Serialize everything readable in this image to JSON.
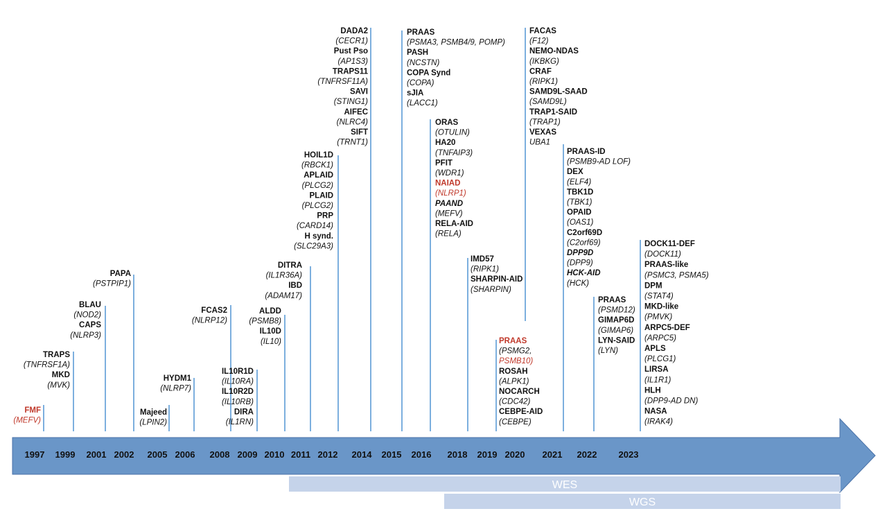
{
  "colors": {
    "black": "#111111",
    "red": "#c0392b",
    "line": "#5b9bd5",
    "arrow": "#6a96c8",
    "arrow_edge": "#4a72a8",
    "band": "#c5d3ea"
  },
  "bands": {
    "wes": "WES",
    "wgs": "WGS"
  },
  "years": [
    "1997",
    "1999",
    "2001",
    "2002",
    "2005",
    "2006",
    "2008",
    "2009",
    "2010",
    "2011",
    "2012",
    "2014",
    "2015",
    "2016",
    "2018",
    "2019",
    "2020",
    "2021",
    "2022",
    "2023"
  ],
  "groups": [
    {
      "name": "1997",
      "entries": [
        {
          "t": "FMF",
          "b": true,
          "c": "red"
        },
        {
          "t": "(MEFV)",
          "i": true,
          "c": "red"
        }
      ]
    },
    {
      "name": "1999",
      "entries": [
        {
          "t": "TRAPS",
          "b": true
        },
        {
          "t": "(TNFRSF1A)",
          "i": true
        },
        {
          "t": "MKD",
          "b": true
        },
        {
          "t": "(MVK)",
          "i": true
        }
      ]
    },
    {
      "name": "2001",
      "entries": [
        {
          "t": "BLAU",
          "b": true
        },
        {
          "t": "(NOD2)",
          "i": true
        },
        {
          "t": "CAPS",
          "b": true
        },
        {
          "t": "(NLRP3)",
          "i": true
        }
      ]
    },
    {
      "name": "2002",
      "entries": [
        {
          "t": "PAPA",
          "b": true
        },
        {
          "t": "(PSTPIP1)",
          "i": true
        }
      ]
    },
    {
      "name": "2005",
      "entries": [
        {
          "t": "Majeed",
          "b": true
        },
        {
          "t": "(LPIN2)",
          "i": true
        }
      ]
    },
    {
      "name": "2006",
      "entries": [
        {
          "t": "HYDM1",
          "b": true
        },
        {
          "t": "(NLRP7)",
          "i": true
        }
      ]
    },
    {
      "name": "2008",
      "entries": [
        {
          "t": "FCAS2",
          "b": true
        },
        {
          "t": "(NLRP12)",
          "i": true
        }
      ]
    },
    {
      "name": "2009",
      "entries": [
        {
          "t": "IL10R1D",
          "b": true
        },
        {
          "t": "(IL10RA)",
          "i": true
        },
        {
          "t": "IL10R2D",
          "b": true
        },
        {
          "t": "(IL10RB)",
          "i": true
        },
        {
          "t": "DIRA",
          "b": true
        },
        {
          "t": "(IL1RN)",
          "i": true
        }
      ]
    },
    {
      "name": "2010",
      "entries": [
        {
          "t": "ALDD",
          "b": true
        },
        {
          "t": "(PSMB8)",
          "i": true
        },
        {
          "t": "IL10D",
          "b": true
        },
        {
          "t": "(IL10)",
          "i": true
        }
      ]
    },
    {
      "name": "2011",
      "entries": [
        {
          "t": "DITRA",
          "b": true
        },
        {
          "t": "(IL1R36A)",
          "i": true
        },
        {
          "t": "IBD",
          "b": true
        },
        {
          "t": "(ADAM17)",
          "i": true
        }
      ]
    },
    {
      "name": "2012",
      "entries": [
        {
          "t": "HOIL1D",
          "b": true
        },
        {
          "t": "(RBCK1)",
          "i": true
        },
        {
          "t": "APLAID",
          "b": true
        },
        {
          "t": "(PLCG2)",
          "i": true
        },
        {
          "t": "PLAID",
          "b": true
        },
        {
          "t": "(PLCG2)",
          "i": true
        },
        {
          "t": "PRP",
          "b": true
        },
        {
          "t": "(CARD14)",
          "i": true
        },
        {
          "t": "H synd.",
          "b": true
        },
        {
          "t": "(SLC29A3)",
          "i": true
        }
      ]
    },
    {
      "name": "2014",
      "entries": [
        {
          "t": "DADA2",
          "b": true
        },
        {
          "t": "(CECR1)",
          "i": true
        },
        {
          "t": "Pust Pso",
          "b": true
        },
        {
          "t": "(AP1S3)",
          "i": true
        },
        {
          "t": "TRAPS11",
          "b": true
        },
        {
          "t": "(TNFRSF11A)",
          "i": true
        },
        {
          "t": "SAVI",
          "b": true
        },
        {
          "t": "(STING1)",
          "i": true
        },
        {
          "t": "AIFEC",
          "b": true
        },
        {
          "t": "(NLRC4)",
          "i": true
        },
        {
          "t": "SIFT",
          "b": true
        },
        {
          "t": "(TRNT1)",
          "i": true
        }
      ]
    },
    {
      "name": "2015",
      "entries": [
        {
          "t": "PRAAS",
          "b": true
        },
        {
          "t": "(PSMA3, PSMB4/9, POMP)",
          "i": true
        },
        {
          "t": "PASH",
          "b": true
        },
        {
          "t": "(NCSTN)",
          "i": true
        },
        {
          "t": "COPA Synd",
          "b": true
        },
        {
          "t": "(COPA)",
          "i": true
        },
        {
          "t": "sJIA",
          "b": true
        },
        {
          "t": "(LACC1)",
          "i": true
        }
      ]
    },
    {
      "name": "2016",
      "entries": [
        {
          "t": "ORAS",
          "b": true
        },
        {
          "t": "(OTULIN)",
          "i": true
        },
        {
          "t": "HA20",
          "b": true
        },
        {
          "t": "(TNFAIP3)",
          "i": true
        },
        {
          "t": "PFIT",
          "b": true
        },
        {
          "t": "(WDR1)",
          "i": true
        },
        {
          "t": "NAIAD",
          "b": true,
          "c": "red"
        },
        {
          "t": "(NLRP1)",
          "i": true,
          "c": "red"
        },
        {
          "t": "PAAND",
          "b": true,
          "i": true
        },
        {
          "t": "(MEFV)",
          "i": true
        },
        {
          "t": "RELA-AID",
          "b": true
        },
        {
          "t": "(RELA)",
          "i": true
        }
      ]
    },
    {
      "name": "2018",
      "entries": [
        {
          "t": "IMD57",
          "b": true
        },
        {
          "t": "(RIPK1)",
          "i": true
        },
        {
          "t": "SHARPIN-AID",
          "b": true
        },
        {
          "t": "(SHARPIN)",
          "i": true
        }
      ]
    },
    {
      "name": "2019",
      "entries": [
        {
          "t": "PRAAS",
          "b": true,
          "c": "red"
        },
        {
          "t": "(PSMG2,",
          "i": true
        },
        {
          "t": "PSMB10)",
          "i": true,
          "c": "red"
        },
        {
          "t": "ROSAH",
          "b": true
        },
        {
          "t": "(ALPK1)",
          "i": true
        },
        {
          "t": "NOCARCH",
          "b": true
        },
        {
          "t": "(CDC42)",
          "i": true
        },
        {
          "t": "CEBPE-AID",
          "b": true
        },
        {
          "t": "(CEBPE)",
          "i": true
        }
      ]
    },
    {
      "name": "2020",
      "entries": [
        {
          "t": "FACAS",
          "b": true
        },
        {
          "t": "(F12)",
          "i": true
        },
        {
          "t": "NEMO-NDAS",
          "b": true
        },
        {
          "t": "(IKBKG)",
          "i": true
        },
        {
          "t": "CRAF",
          "b": true
        },
        {
          "t": "(RIPK1)",
          "i": true
        },
        {
          "t": "SAMD9L-SAAD",
          "b": true
        },
        {
          "t": "(SAMD9L)",
          "i": true
        },
        {
          "t": "TRAP1-SAID",
          "b": true
        },
        {
          "t": "(TRAP1)",
          "i": true
        },
        {
          "t": "VEXAS",
          "b": true
        },
        {
          "t": "UBA1",
          "i": true
        }
      ]
    },
    {
      "name": "2021",
      "entries": [
        {
          "t": "PRAAS-ID",
          "b": true
        },
        {
          "t": "(PSMB9-AD LOF)",
          "i": true
        },
        {
          "t": "DEX",
          "b": true
        },
        {
          "t": "(ELF4)",
          "i": true
        },
        {
          "t": "TBK1D",
          "b": true
        },
        {
          "t": "(TBK1)",
          "i": true
        },
        {
          "t": "OPAID",
          "b": true
        },
        {
          "t": "(OAS1)",
          "i": true
        },
        {
          "t": "C2orf69D",
          "b": true
        },
        {
          "t": "(C2orf69)",
          "i": true
        },
        {
          "t": "DPP9D",
          "b": true,
          "i": true
        },
        {
          "t": "(DPP9)",
          "i": true
        },
        {
          "t": "HCK-AID",
          "b": true,
          "i": true
        },
        {
          "t": "(HCK)",
          "i": true
        }
      ]
    },
    {
      "name": "2022",
      "entries": [
        {
          "t": "PRAAS",
          "b": true
        },
        {
          "t": "(PSMD12)",
          "i": true
        },
        {
          "t": "GIMAP6D",
          "b": true
        },
        {
          "t": "(GIMAP6)",
          "i": true
        },
        {
          "t": "LYN-SAID",
          "b": true
        },
        {
          "t": "(LYN)",
          "i": true
        }
      ]
    },
    {
      "name": "2023",
      "entries": [
        {
          "t": "DOCK11-DEF",
          "b": true
        },
        {
          "t": "(DOCK11)",
          "i": true
        },
        {
          "t": "PRAAS-like",
          "b": true
        },
        {
          "t": "(PSMC3, PSMA5)",
          "i": true
        },
        {
          "t": "DPM",
          "b": true
        },
        {
          "t": "(STAT4)",
          "i": true
        },
        {
          "t": "MKD-like",
          "b": true
        },
        {
          "t": "(PMVK)",
          "i": true
        },
        {
          "t": "ARPC5-DEF",
          "b": true
        },
        {
          "t": "(ARPC5)",
          "i": true
        },
        {
          "t": "APLS",
          "b": true
        },
        {
          "t": "(PLCG1)",
          "i": true
        },
        {
          "t": "LIRSA",
          "b": true
        },
        {
          "t": "(IL1R1)",
          "i": true
        },
        {
          "t": "HLH",
          "b": true
        },
        {
          "t": "(DPP9-AD DN)",
          "i": true
        },
        {
          "t": "NASA",
          "b": true
        },
        {
          "t": "(IRAK4)",
          "i": true
        }
      ]
    }
  ]
}
